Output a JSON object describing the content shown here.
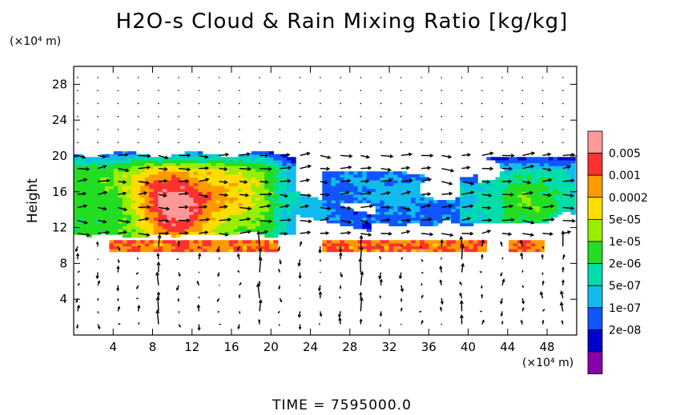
{
  "chart_data": {
    "type": "heatmap",
    "title": "H2O-s Cloud & Rain Mixing Ratio [kg/kg]",
    "xlabel": "",
    "ylabel": "Height",
    "x_unit": "(×10⁴ m)",
    "y_unit": "(×10⁴ m)",
    "xlim": [
      0,
      51
    ],
    "ylim": [
      0,
      30
    ],
    "x_ticks": [
      4,
      8,
      12,
      16,
      20,
      24,
      28,
      32,
      36,
      40,
      44,
      48
    ],
    "y_ticks": [
      4,
      8,
      12,
      16,
      20,
      24,
      28
    ],
    "colorbar": {
      "labels": [
        "0.005",
        "0.001",
        "0.0002",
        "5e-05",
        "1e-05",
        "2e-06",
        "5e-07",
        "1e-07",
        "2e-08"
      ],
      "colors": [
        "#ff9999",
        "#ff3030",
        "#ff9900",
        "#ffdd00",
        "#99ee00",
        "#22dd22",
        "#00ddaa",
        "#11bbee",
        "#1155ff",
        "#0000cc",
        "#8800aa"
      ]
    },
    "footer": "TIME = 7595000.0"
  }
}
